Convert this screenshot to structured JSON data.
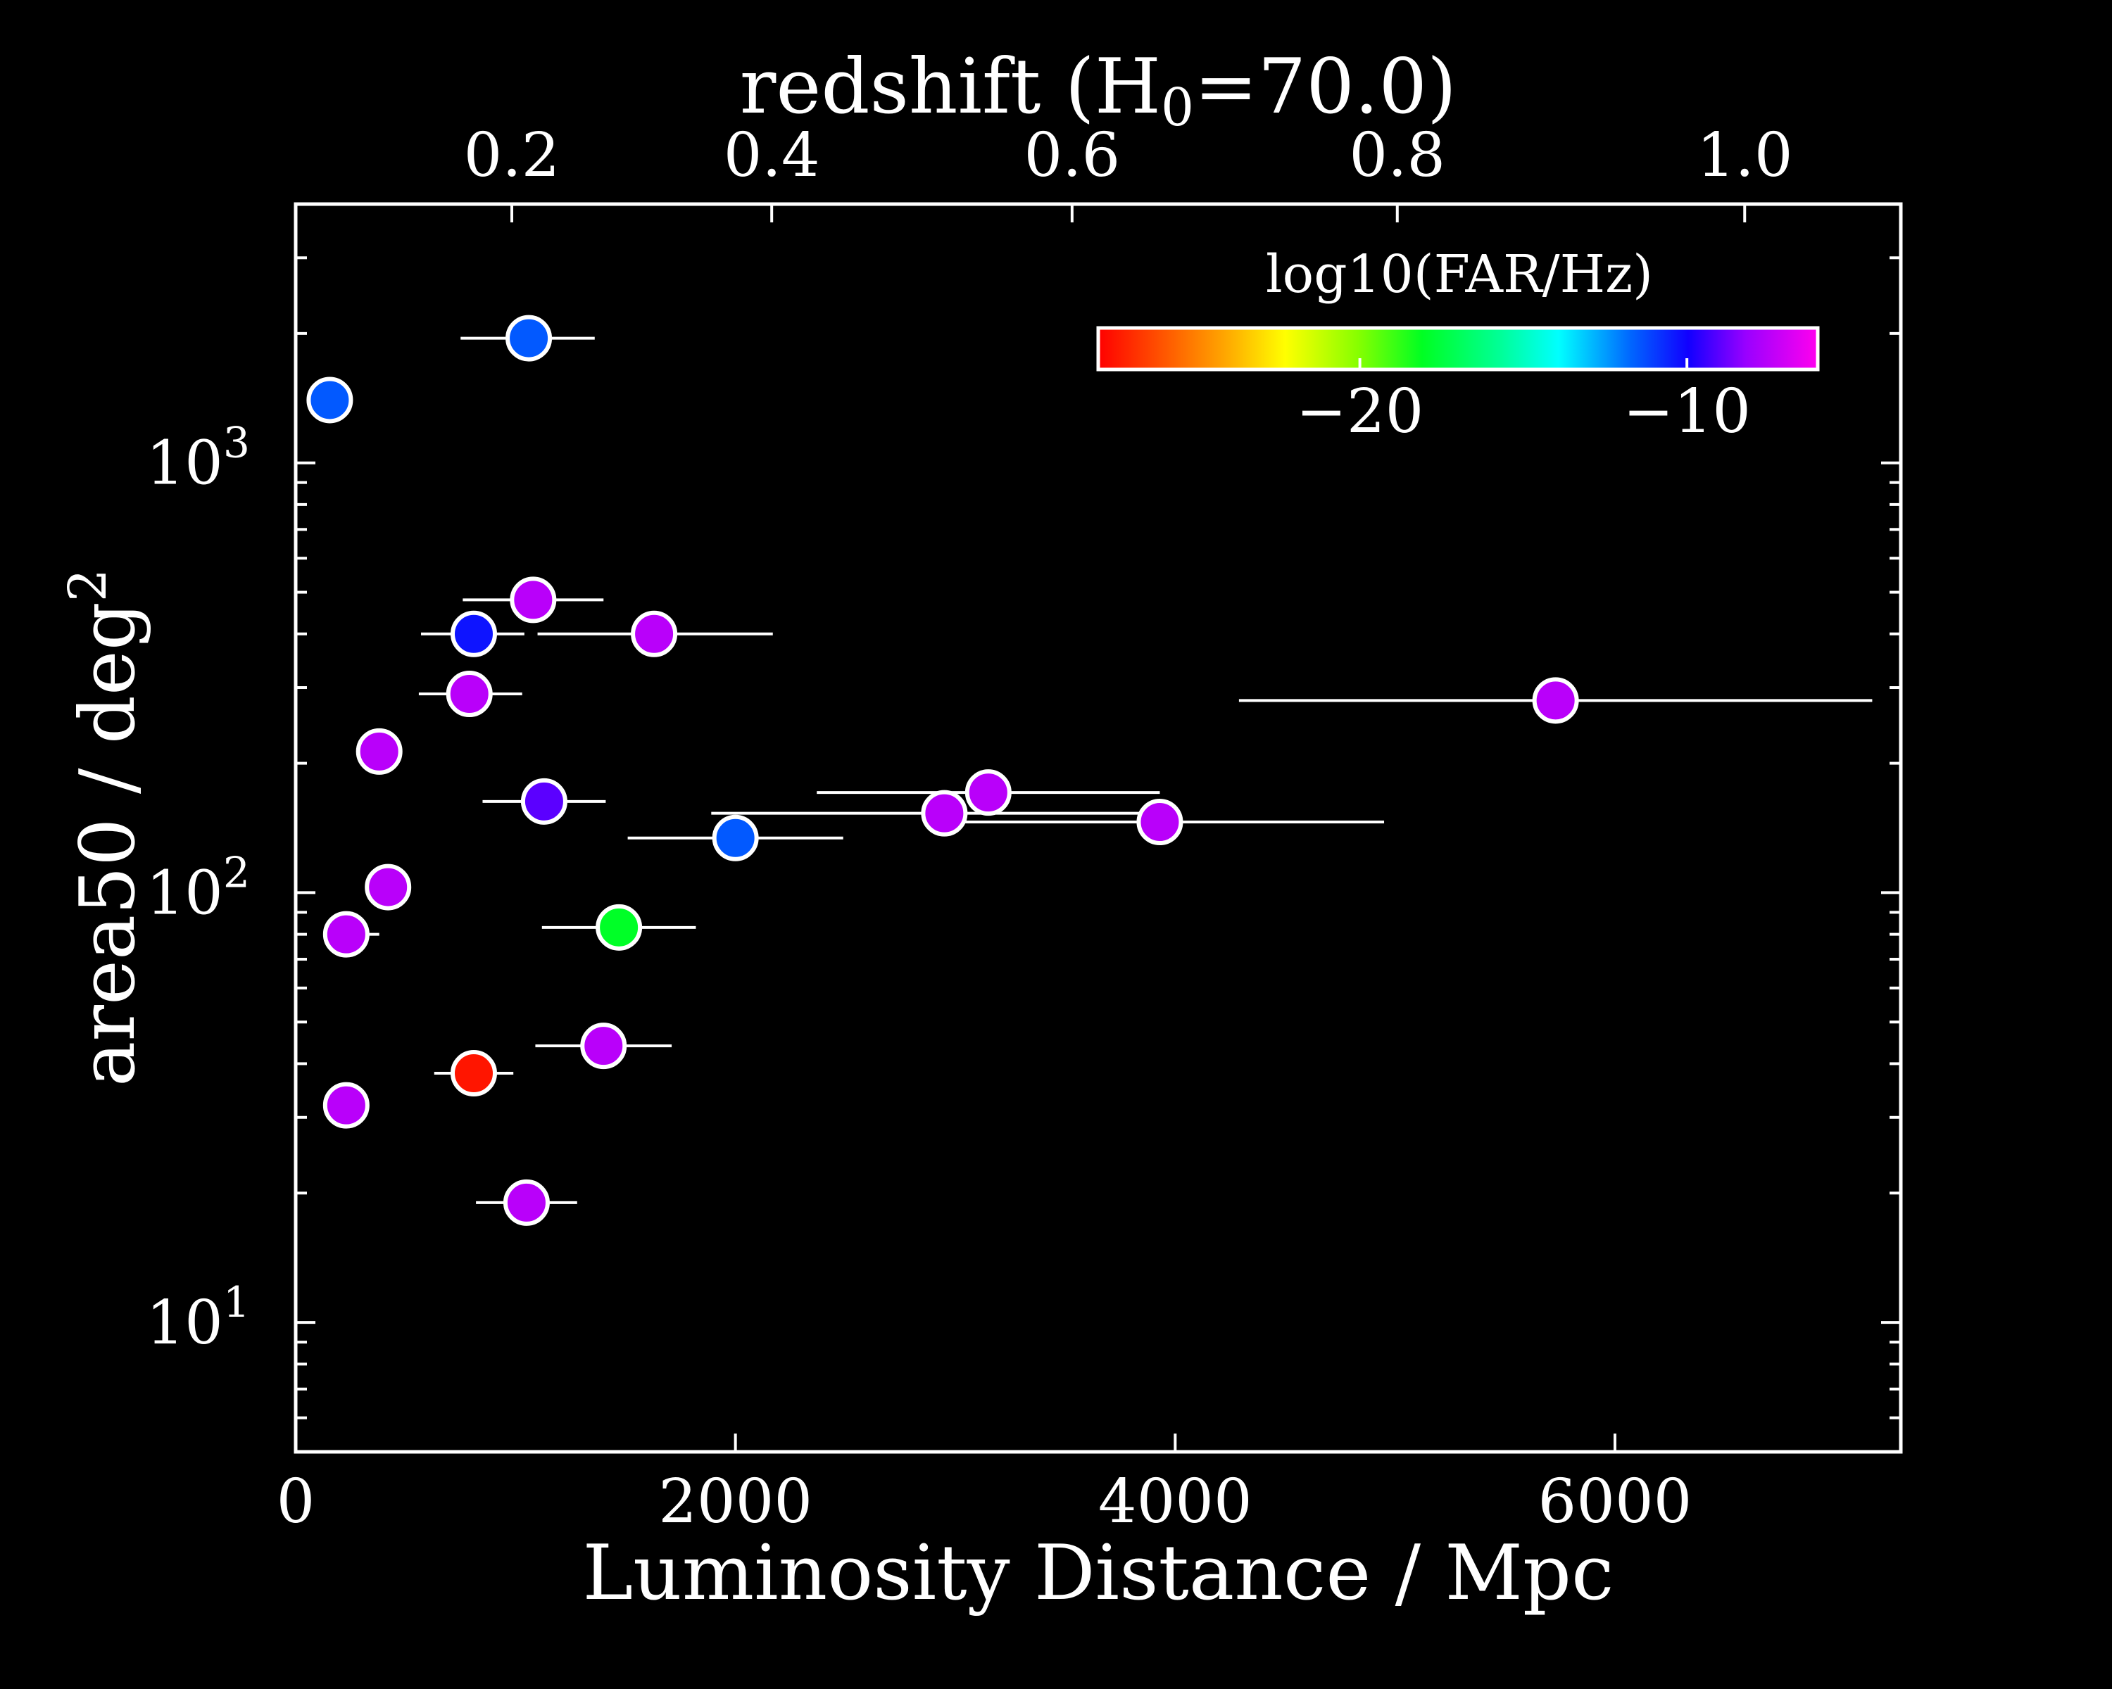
{
  "chart_data": {
    "type": "scatter",
    "title": "",
    "xlabel": "Luminosity Distance / Mpc",
    "ylabel_main": "area50 / deg",
    "ylabel_sup": "2",
    "top_axis_label_main": "redshift (H",
    "top_axis_label_sub": "0",
    "top_axis_label_tail": "=70.0)",
    "xlim": [
      0,
      7300
    ],
    "ylim": [
      5,
      4000
    ],
    "yscale": "log",
    "x_ticks": [
      0,
      2000,
      4000,
      6000
    ],
    "x_tick_labels": [
      "0",
      "2000",
      "4000",
      "6000"
    ],
    "y_ticks": [
      10,
      100,
      1000
    ],
    "y_tick_base": "10",
    "y_tick_exps": [
      "1",
      "2",
      "3"
    ],
    "top_ticks": [
      {
        "label": "0.2",
        "x": 983
      },
      {
        "label": "0.4",
        "x": 2165
      },
      {
        "label": "0.6",
        "x": 3531
      },
      {
        "label": "0.8",
        "x": 5010
      },
      {
        "label": "1.0",
        "x": 6590
      }
    ],
    "colorbar": {
      "label": "log10(FAR/Hz)",
      "range": [
        -28,
        -6
      ],
      "ticks": [
        -20,
        -10
      ],
      "tick_labels": [
        "−20",
        "−10"
      ],
      "colormap": "gist_rainbow"
    },
    "colors": {
      "background": "#000000",
      "foreground": "#ffffff"
    },
    "points": [
      {
        "x": 155,
        "y": 1400,
        "xerr": [
          0,
          0
        ],
        "log10_far": -11.5
      },
      {
        "x": 1060,
        "y": 1950,
        "xerr": [
          310,
          300
        ],
        "log10_far": -11.5
      },
      {
        "x": 1080,
        "y": 480,
        "xerr": [
          320,
          320
        ],
        "log10_far": -7.5
      },
      {
        "x": 810,
        "y": 400,
        "xerr": [
          240,
          230
        ],
        "log10_far": -10.3
      },
      {
        "x": 1630,
        "y": 400,
        "xerr": [
          530,
          540
        ],
        "log10_far": -7.5
      },
      {
        "x": 790,
        "y": 290,
        "xerr": [
          230,
          240
        ],
        "log10_far": -7.5
      },
      {
        "x": 5730,
        "y": 280,
        "xerr": [
          1440,
          1440
        ],
        "log10_far": -7.5
      },
      {
        "x": 380,
        "y": 213,
        "xerr": [
          0,
          0
        ],
        "log10_far": -7.5
      },
      {
        "x": 1130,
        "y": 163,
        "xerr": [
          280,
          280
        ],
        "log10_far": -9.0
      },
      {
        "x": 3150,
        "y": 171,
        "xerr": [
          780,
          780
        ],
        "log10_far": -7.5
      },
      {
        "x": 2950,
        "y": 153,
        "xerr": [
          1060,
          1050
        ],
        "log10_far": -7.5
      },
      {
        "x": 3930,
        "y": 146,
        "xerr": [
          1020,
          1020
        ],
        "log10_far": -7.5
      },
      {
        "x": 2000,
        "y": 134,
        "xerr": [
          490,
          490
        ],
        "log10_far": -11.5
      },
      {
        "x": 420,
        "y": 103,
        "xerr": [
          0,
          0
        ],
        "log10_far": -7.5
      },
      {
        "x": 230,
        "y": 80,
        "xerr": [
          0,
          150
        ],
        "log10_far": -7.5
      },
      {
        "x": 1470,
        "y": 83,
        "xerr": [
          350,
          350
        ],
        "log10_far": -18.0
      },
      {
        "x": 1400,
        "y": 44,
        "xerr": [
          310,
          310
        ],
        "log10_far": -7.5
      },
      {
        "x": 810,
        "y": 38,
        "xerr": [
          180,
          180
        ],
        "log10_far": -27.5
      },
      {
        "x": 230,
        "y": 32,
        "xerr": [
          0,
          0
        ],
        "log10_far": -7.5
      },
      {
        "x": 1050,
        "y": 19,
        "xerr": [
          230,
          230
        ],
        "log10_far": -7.5
      }
    ]
  }
}
